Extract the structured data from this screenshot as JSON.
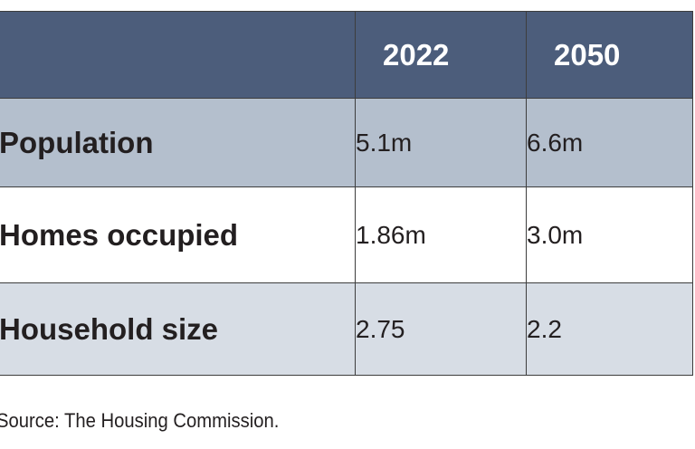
{
  "table": {
    "columns": [
      "",
      "2022",
      "2050"
    ],
    "rows": [
      {
        "label": "Population",
        "y2022": "5.1m",
        "y2050": "6.6m"
      },
      {
        "label": "Homes occupied",
        "y2022": "1.86m",
        "y2050": "3.0m"
      },
      {
        "label": "Household size",
        "y2022": "2.75",
        "y2050": "2.2"
      }
    ]
  },
  "source": "Source: The Housing Commission.",
  "colors": {
    "header_bg": "#4c5d7b",
    "row1_bg": "#b4bfcd",
    "row2_bg": "#ffffff",
    "row3_bg": "#d7dde5"
  }
}
